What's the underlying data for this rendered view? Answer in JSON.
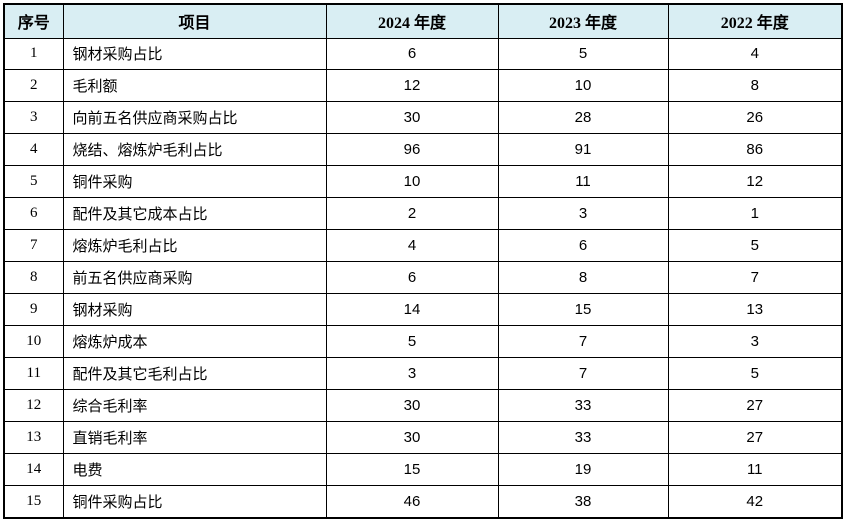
{
  "table": {
    "colors": {
      "header_bg": "#d9eef3",
      "border": "#000000",
      "text": "#000000"
    },
    "columns": [
      {
        "label": "序号"
      },
      {
        "label": "项目"
      },
      {
        "label": "2024 年度"
      },
      {
        "label": "2023 年度"
      },
      {
        "label": "2022 年度"
      }
    ],
    "rows": [
      {
        "no": "1",
        "item": "钢材采购占比",
        "y2024": "6",
        "y2023": "5",
        "y2022": "4"
      },
      {
        "no": "2",
        "item": "毛利额",
        "y2024": "12",
        "y2023": "10",
        "y2022": "8"
      },
      {
        "no": "3",
        "item": "向前五名供应商采购占比",
        "y2024": "30",
        "y2023": "28",
        "y2022": "26"
      },
      {
        "no": "4",
        "item": "烧结、熔炼炉毛利占比",
        "y2024": "96",
        "y2023": "91",
        "y2022": "86"
      },
      {
        "no": "5",
        "item": "铜件采购",
        "y2024": "10",
        "y2023": "11",
        "y2022": "12"
      },
      {
        "no": "6",
        "item": "配件及其它成本占比",
        "y2024": "2",
        "y2023": "3",
        "y2022": "1"
      },
      {
        "no": "7",
        "item": "熔炼炉毛利占比",
        "y2024": "4",
        "y2023": "6",
        "y2022": "5"
      },
      {
        "no": "8",
        "item": "前五名供应商采购",
        "y2024": "6",
        "y2023": "8",
        "y2022": "7"
      },
      {
        "no": "9",
        "item": "钢材采购",
        "y2024": "14",
        "y2023": "15",
        "y2022": "13"
      },
      {
        "no": "10",
        "item": "熔炼炉成本",
        "y2024": "5",
        "y2023": "7",
        "y2022": "3"
      },
      {
        "no": "11",
        "item": "配件及其它毛利占比",
        "y2024": "3",
        "y2023": "7",
        "y2022": "5"
      },
      {
        "no": "12",
        "item": "综合毛利率",
        "y2024": "30",
        "y2023": "33",
        "y2022": "27"
      },
      {
        "no": "13",
        "item": "直销毛利率",
        "y2024": "30",
        "y2023": "33",
        "y2022": "27"
      },
      {
        "no": "14",
        "item": "电费",
        "y2024": "15",
        "y2023": "19",
        "y2022": "11"
      },
      {
        "no": "15",
        "item": "铜件采购占比",
        "y2024": "46",
        "y2023": "38",
        "y2022": "42"
      }
    ]
  }
}
